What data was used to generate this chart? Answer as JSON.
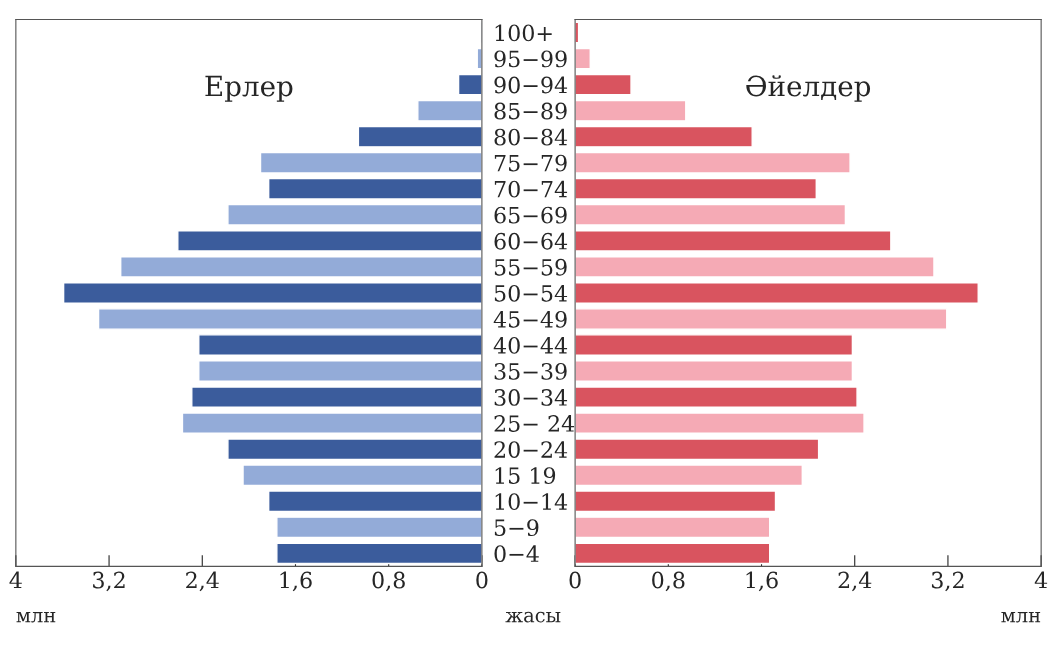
{
  "chart_data": [
    {
      "type": "bar",
      "orientation": "horizontal",
      "title": "Ерлер",
      "xlabel": "млн",
      "ylabel": "жасы",
      "categories": [
        "100+",
        "95−99",
        "90−94",
        "85−89",
        "80−84",
        "75−79",
        "70−74",
        "65−69",
        "60−64",
        "55−59",
        "50−54",
        "45−49",
        "40−44",
        "35−39",
        "30−34",
        "25− 24",
        "20−24",
        "15 19",
        "10−14",
        "5−9",
        "0−4"
      ],
      "values": [
        0.01,
        0.04,
        0.2,
        0.55,
        1.06,
        1.9,
        1.83,
        2.18,
        2.61,
        3.1,
        3.59,
        3.29,
        2.43,
        2.43,
        2.49,
        2.57,
        2.18,
        2.05,
        1.83,
        1.76,
        1.76
      ],
      "colors": [
        "#3b5c9c",
        "#93abd8",
        "#3b5c9c",
        "#93abd8",
        "#3b5c9c",
        "#93abd8",
        "#3b5c9c",
        "#93abd8",
        "#3b5c9c",
        "#93abd8",
        "#3b5c9c",
        "#93abd8",
        "#3b5c9c",
        "#93abd8",
        "#3b5c9c",
        "#93abd8",
        "#3b5c9c",
        "#93abd8",
        "#3b5c9c",
        "#93abd8",
        "#3b5c9c"
      ],
      "xlim": [
        4,
        0
      ],
      "xticks": [
        4,
        {
          "value": 3.2,
          "label": "3,2"
        },
        {
          "value": 2.4,
          "label": "2,4"
        },
        {
          "value": 1.6,
          "label": "1,6"
        },
        {
          "value": 0.8,
          "label": "0,8"
        },
        0
      ],
      "grid": false
    },
    {
      "type": "bar",
      "orientation": "horizontal",
      "title": "Әйелдер",
      "xlabel": "млн",
      "tick_labels": "x",
      "values": [
        0.03,
        0.13,
        0.48,
        0.95,
        1.52,
        2.36,
        2.07,
        2.32,
        2.71,
        3.08,
        3.46,
        3.19,
        2.38,
        2.38,
        2.42,
        2.48,
        2.09,
        1.95,
        1.72,
        1.67,
        1.67
      ],
      "colors": [
        "#d9545f",
        "#f5aab5",
        "#d9545f",
        "#f5aab5",
        "#d9545f",
        "#f5aab5",
        "#d9545f",
        "#f5aab5",
        "#d9545f",
        "#f5aab5",
        "#d9545f",
        "#f5aab5",
        "#d9545f",
        "#f5aab5",
        "#d9545f",
        "#f5aab5",
        "#d9545f",
        "#f5aab5",
        "#d9545f",
        "#f5aab5",
        "#d9545f"
      ],
      "xlim": [
        0,
        4
      ],
      "xticks": [
        0,
        {
          "value": 0.8,
          "label": "0,8"
        },
        {
          "value": 1.6,
          "label": "1,6"
        },
        {
          "value": 2.4,
          "label": "2,4"
        },
        {
          "value": 3.2,
          "label": "3,2"
        },
        4
      ],
      "grid": false
    }
  ]
}
